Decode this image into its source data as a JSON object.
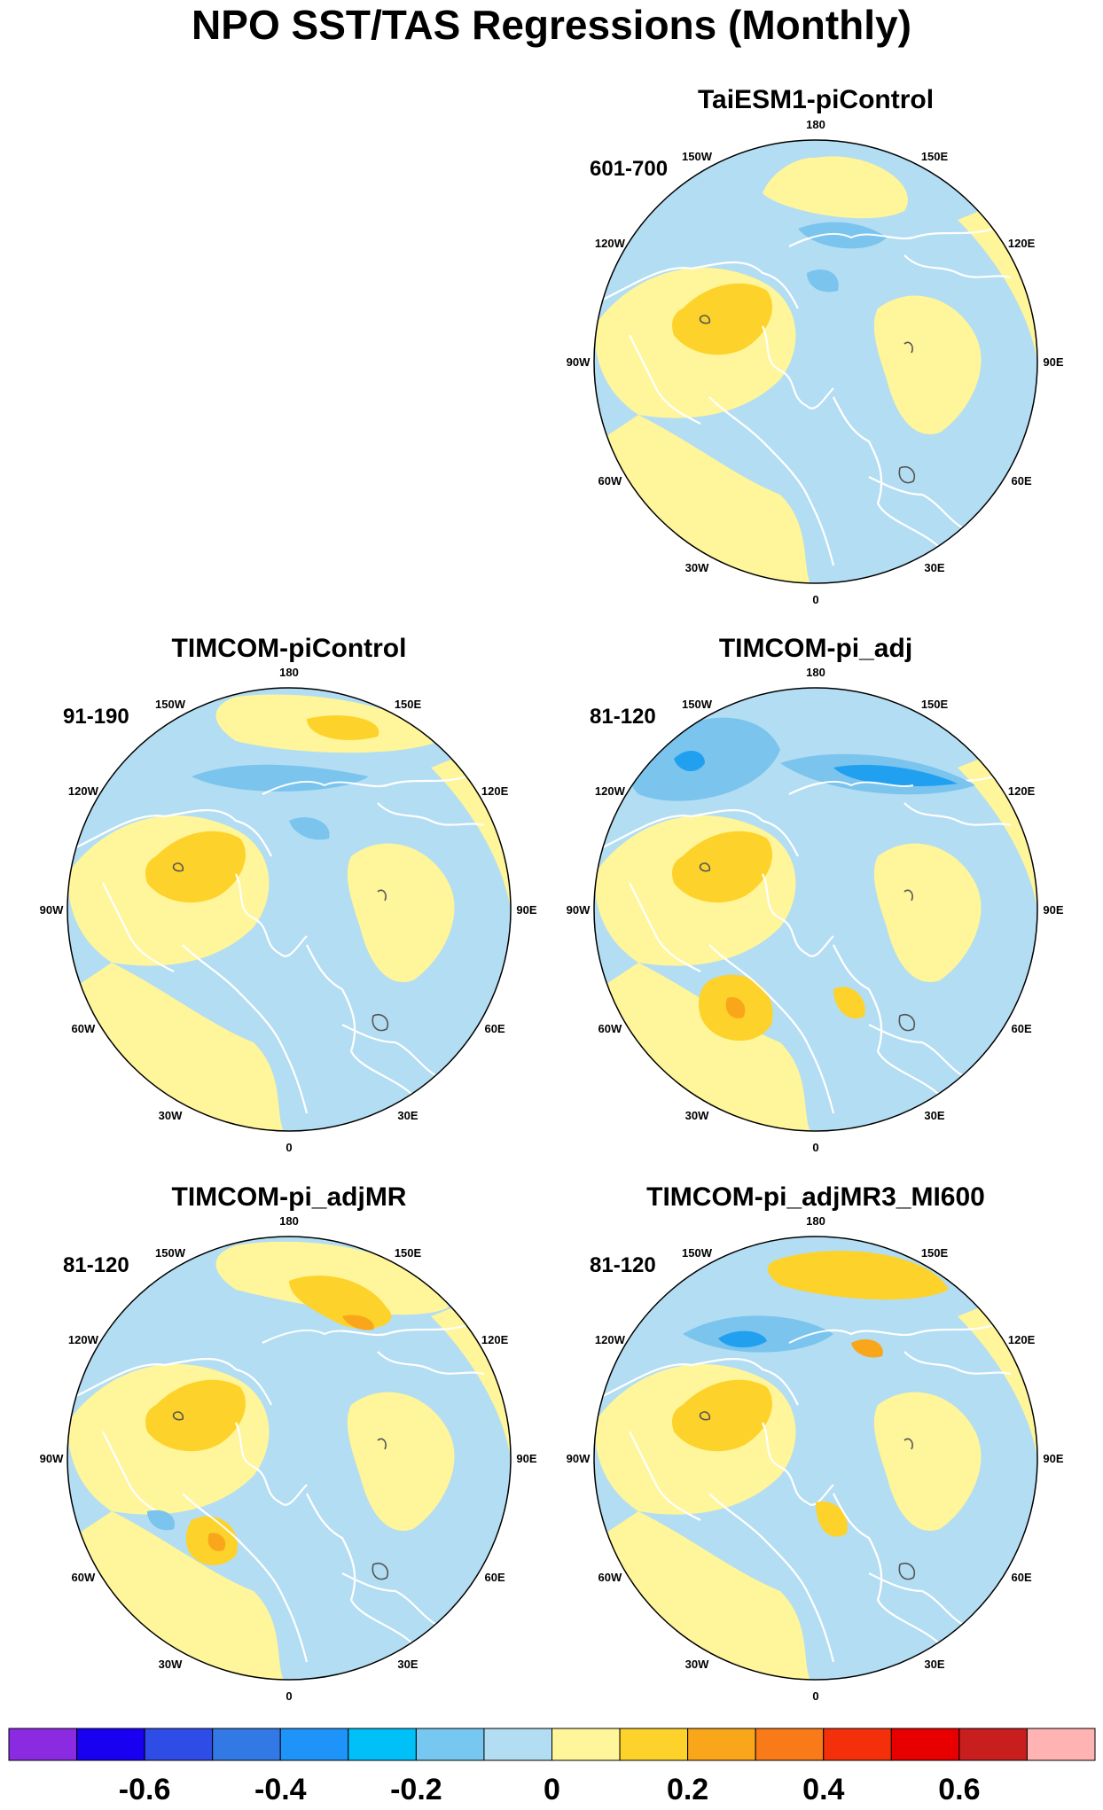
{
  "title": "NPO SST/TAS Regressions (Monthly)",
  "colors": {
    "neg_weak": "#b3ddf2",
    "neg_mid": "#7ac4ee",
    "neg_strong": "#22a0f0",
    "pos_weak": "#fff59a",
    "pos_mid": "#fdd22a",
    "pos_strong": "#faa61a",
    "coast": "#ffffff",
    "lake": "#555555"
  },
  "longitude_labels": [
    "180",
    "150E",
    "120E",
    "90E",
    "60E",
    "30E",
    "0",
    "30W",
    "60W",
    "90W",
    "120W",
    "150W"
  ],
  "panels": [
    {
      "title": "TaiESM1-piControl",
      "years": "601-700"
    },
    {
      "title": "TIMCOM-piControl",
      "years": "91-190"
    },
    {
      "title": "TIMCOM-pi_adj",
      "years": "81-120"
    },
    {
      "title": "TIMCOM-pi_adjMR",
      "years": "81-120"
    },
    {
      "title": "TIMCOM-pi_adjMR3_MI600",
      "years": "81-120"
    }
  ],
  "colorbar": {
    "colors": [
      "#8a2be2",
      "#1a00f0",
      "#2e4ce6",
      "#3279e6",
      "#1e94f8",
      "#00c0f8",
      "#76c8f0",
      "#b3ddf2",
      "#fff59a",
      "#fdd22a",
      "#faa61a",
      "#f87a18",
      "#f4300a",
      "#e80000",
      "#c81e1e",
      "#ffb3b3"
    ],
    "labels": [
      "-0.6",
      "-0.4",
      "-0.2",
      "0",
      "0.2",
      "0.4",
      "0.6"
    ]
  }
}
